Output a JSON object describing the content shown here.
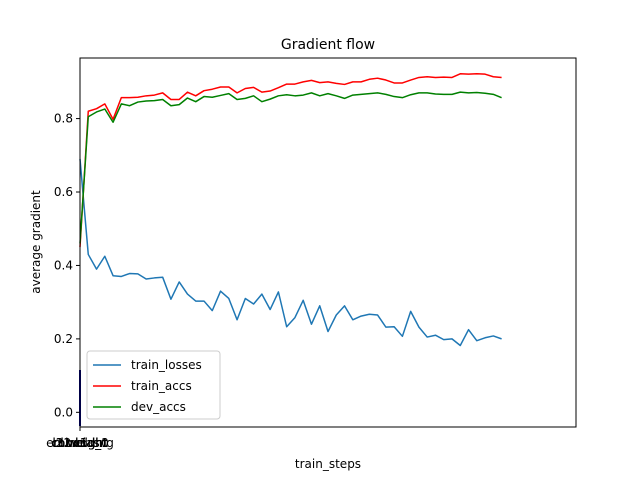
{
  "chart_data": {
    "type": "line",
    "title": "Gradient flow",
    "xlabel": "train_steps",
    "ylabel": "average gradient",
    "x_tick_labels": [
      "l1.weight",
      "l1.bias",
      "l2.weight",
      "l2.bias",
      "l3.weight",
      "conv1d_0",
      "conv1d_1",
      "embedding"
    ],
    "y_ticks": [
      0.0,
      0.2,
      0.4,
      0.6,
      0.8
    ],
    "y_tick_labels": [
      "0.0",
      "0.2",
      "0.4",
      "0.6",
      "0.8"
    ],
    "ylim": [
      -0.04,
      0.965
    ],
    "xlim": [
      0,
      60
    ],
    "grid": false,
    "legend_position": "lower-left",
    "series": [
      {
        "name": "train_losses",
        "color": "#1f77b4",
        "values": [
          0.69,
          0.43,
          0.39,
          0.425,
          0.372,
          0.37,
          0.378,
          0.377,
          0.363,
          0.366,
          0.368,
          0.308,
          0.355,
          0.322,
          0.303,
          0.303,
          0.277,
          0.33,
          0.31,
          0.252,
          0.31,
          0.295,
          0.322,
          0.28,
          0.328,
          0.233,
          0.258,
          0.305,
          0.24,
          0.29,
          0.22,
          0.265,
          0.29,
          0.252,
          0.262,
          0.267,
          0.265,
          0.232,
          0.233,
          0.207,
          0.275,
          0.232,
          0.205,
          0.21,
          0.198,
          0.2,
          0.182,
          0.225,
          0.195,
          0.203,
          0.208,
          0.2
        ]
      },
      {
        "name": "train_accs",
        "color": "#ff0000",
        "values": [
          0.45,
          0.82,
          0.827,
          0.84,
          0.798,
          0.857,
          0.857,
          0.858,
          0.862,
          0.864,
          0.87,
          0.852,
          0.852,
          0.872,
          0.862,
          0.876,
          0.88,
          0.886,
          0.886,
          0.87,
          0.882,
          0.885,
          0.872,
          0.875,
          0.884,
          0.894,
          0.894,
          0.9,
          0.904,
          0.898,
          0.9,
          0.896,
          0.893,
          0.9,
          0.9,
          0.907,
          0.91,
          0.905,
          0.897,
          0.897,
          0.905,
          0.912,
          0.914,
          0.912,
          0.913,
          0.912,
          0.922,
          0.921,
          0.922,
          0.921,
          0.914,
          0.912
        ]
      },
      {
        "name": "dev_accs",
        "color": "#008000",
        "values": [
          0.46,
          0.805,
          0.818,
          0.826,
          0.79,
          0.84,
          0.835,
          0.845,
          0.848,
          0.849,
          0.852,
          0.835,
          0.838,
          0.856,
          0.846,
          0.86,
          0.858,
          0.863,
          0.868,
          0.852,
          0.855,
          0.862,
          0.846,
          0.853,
          0.862,
          0.865,
          0.862,
          0.864,
          0.87,
          0.862,
          0.868,
          0.862,
          0.855,
          0.864,
          0.866,
          0.868,
          0.87,
          0.866,
          0.86,
          0.857,
          0.865,
          0.87,
          0.87,
          0.867,
          0.866,
          0.866,
          0.872,
          0.87,
          0.871,
          0.869,
          0.866,
          0.857
        ]
      }
    ]
  }
}
